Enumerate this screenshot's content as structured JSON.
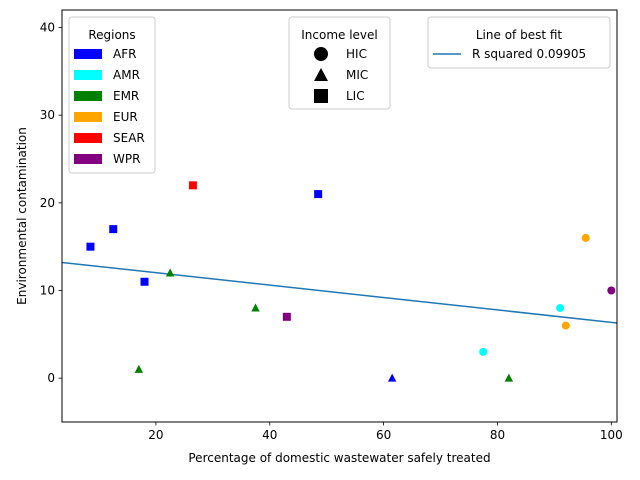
{
  "chart_data": {
    "type": "scatter",
    "xlabel": "Percentage of domestic wastewater safely treated",
    "ylabel": "Environmental contamination",
    "xlim": [
      3.5,
      101
    ],
    "ylim": [
      -5,
      42
    ],
    "xticks": [
      20,
      40,
      60,
      80,
      100
    ],
    "yticks": [
      0,
      10,
      20,
      30,
      40
    ],
    "grid": false,
    "region_colors": {
      "AFR": "#0000ff",
      "AMR": "#00ffff",
      "EMR": "#008000",
      "EUR": "#ffa500",
      "SEAR": "#ff0000",
      "WPR": "#800080"
    },
    "income_markers": {
      "HIC": "circle",
      "MIC": "triangle",
      "LIC": "square"
    },
    "points": [
      {
        "x": 8.5,
        "y": 15,
        "region": "AFR",
        "income": "LIC"
      },
      {
        "x": 12.5,
        "y": 17,
        "region": "AFR",
        "income": "LIC"
      },
      {
        "x": 18,
        "y": 11,
        "region": "AFR",
        "income": "LIC"
      },
      {
        "x": 48.5,
        "y": 21,
        "region": "AFR",
        "income": "LIC"
      },
      {
        "x": 61.5,
        "y": 0,
        "region": "AFR",
        "income": "MIC"
      },
      {
        "x": 77.5,
        "y": 3,
        "region": "AMR",
        "income": "HIC"
      },
      {
        "x": 91,
        "y": 8,
        "region": "AMR",
        "income": "HIC"
      },
      {
        "x": 17,
        "y": 1,
        "region": "EMR",
        "income": "MIC"
      },
      {
        "x": 22.5,
        "y": 12,
        "region": "EMR",
        "income": "MIC"
      },
      {
        "x": 37.5,
        "y": 8,
        "region": "EMR",
        "income": "MIC"
      },
      {
        "x": 82,
        "y": 0,
        "region": "EMR",
        "income": "MIC"
      },
      {
        "x": 92,
        "y": 6,
        "region": "EUR",
        "income": "HIC"
      },
      {
        "x": 95.5,
        "y": 16,
        "region": "EUR",
        "income": "HIC"
      },
      {
        "x": 26.5,
        "y": 22,
        "region": "SEAR",
        "income": "LIC"
      },
      {
        "x": 43,
        "y": 7,
        "region": "WPR",
        "income": "LIC"
      },
      {
        "x": 100,
        "y": 10,
        "region": "WPR",
        "income": "HIC"
      }
    ],
    "fit_line": {
      "color": "#1f77b4",
      "label": "R squared 0.09905",
      "x": [
        3.5,
        101
      ],
      "y": [
        13.2,
        6.3
      ]
    },
    "legends": {
      "regions": {
        "title": "Regions",
        "entries": [
          "AFR",
          "AMR",
          "EMR",
          "EUR",
          "SEAR",
          "WPR"
        ]
      },
      "income": {
        "title": "Income level",
        "entries": [
          "HIC",
          "MIC",
          "LIC"
        ]
      },
      "fit": {
        "title": "Line of best fit"
      }
    }
  }
}
